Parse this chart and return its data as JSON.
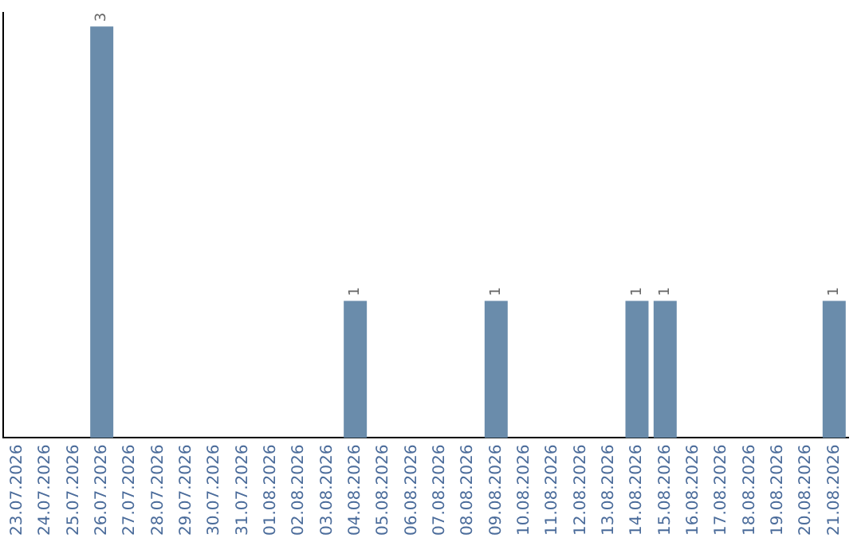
{
  "chart_data": {
    "type": "bar",
    "categories": [
      "23.07.2026",
      "24.07.2026",
      "25.07.2026",
      "26.07.2026",
      "27.07.2026",
      "28.07.2026",
      "29.07.2026",
      "30.07.2026",
      "31.07.2026",
      "01.08.2026",
      "02.08.2026",
      "03.08.2026",
      "04.08.2026",
      "05.08.2026",
      "06.08.2026",
      "07.08.2026",
      "08.08.2026",
      "09.08.2026",
      "10.08.2026",
      "11.08.2026",
      "12.08.2026",
      "13.08.2026",
      "14.08.2026",
      "15.08.2026",
      "16.08.2026",
      "17.08.2026",
      "18.08.2026",
      "19.08.2026",
      "20.08.2026",
      "21.08.2026"
    ],
    "values": [
      0,
      0,
      0,
      3,
      0,
      0,
      0,
      0,
      0,
      0,
      0,
      0,
      1,
      0,
      0,
      0,
      0,
      1,
      0,
      0,
      0,
      0,
      1,
      1,
      0,
      0,
      0,
      0,
      0,
      1
    ],
    "value_labels": [
      null,
      null,
      null,
      "3",
      null,
      null,
      null,
      null,
      null,
      null,
      null,
      null,
      "1",
      null,
      null,
      null,
      null,
      "1",
      null,
      null,
      null,
      null,
      "1",
      "1",
      null,
      null,
      null,
      null,
      null,
      "1"
    ],
    "color": "#6a8cab",
    "ylim": [
      0,
      3.1
    ],
    "tick_labels": "x",
    "grid": false,
    "legend": false
  }
}
